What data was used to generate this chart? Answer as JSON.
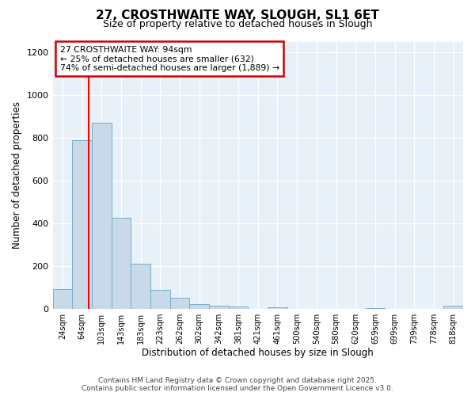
{
  "title": "27, CROSTHWAITE WAY, SLOUGH, SL1 6ET",
  "subtitle": "Size of property relative to detached houses in Slough",
  "xlabel": "Distribution of detached houses by size in Slough",
  "ylabel": "Number of detached properties",
  "categories": [
    "24sqm",
    "64sqm",
    "103sqm",
    "143sqm",
    "183sqm",
    "223sqm",
    "262sqm",
    "302sqm",
    "342sqm",
    "381sqm",
    "421sqm",
    "461sqm",
    "500sqm",
    "540sqm",
    "580sqm",
    "620sqm",
    "659sqm",
    "699sqm",
    "739sqm",
    "778sqm",
    "818sqm"
  ],
  "bar_heights": [
    90,
    790,
    870,
    425,
    210,
    88,
    50,
    22,
    15,
    10,
    0,
    5,
    0,
    0,
    0,
    0,
    3,
    0,
    0,
    0,
    15
  ],
  "bar_color": "#c8d9ea",
  "bar_edge_color": "#7aaec8",
  "background_color": "#ffffff",
  "plot_bg_color": "#e8f0f8",
  "grid_color": "#ffffff",
  "red_line_x": 1.35,
  "annotation_text": "27 CROSTHWAITE WAY: 94sqm\n← 25% of detached houses are smaller (632)\n74% of semi-detached houses are larger (1,889) →",
  "annotation_box_color": "#ffffff",
  "annotation_box_edge_color": "#cc0000",
  "footer_text": "Contains HM Land Registry data © Crown copyright and database right 2025.\nContains public sector information licensed under the Open Government Licence v3.0.",
  "ylim": [
    0,
    1250
  ],
  "yticks": [
    0,
    200,
    400,
    600,
    800,
    1000,
    1200
  ]
}
